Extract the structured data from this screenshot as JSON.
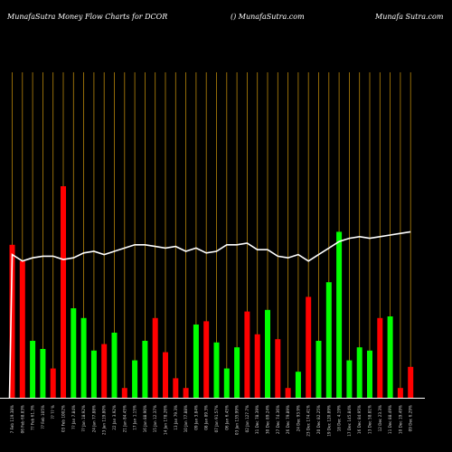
{
  "header": {
    "left": "MunafaSutra  Money Flow  Charts for DCOR",
    "middle": "() MunafaSutra.com",
    "right": "Munafa Sutra.com"
  },
  "chart_data": {
    "type": "bar",
    "title": "MunafaSutra  Money Flow  Charts for DCOR",
    "colors": {
      "up": "#00ff00",
      "down": "#ff0000",
      "grid": "#b8860b",
      "line": "#ffffff",
      "background": "#000000"
    },
    "categories": [
      "7 Feb 119.38%",
      "06 Feb 68.83%",
      "?? Feb 61.3%",
      "?? Feb 105%",
      "?? ?? %",
      "03 Feb 1002%",
      "?? Jan 7.84%",
      "?? Jan 18.92%",
      "24 Jan 77.88%",
      "23 Jan 119.80%",
      "22 Jan 3.92%",
      "21 Jan 84.45%",
      "17 Jan 1.15%",
      "16 Jan 88.90%",
      "15 Jan 12.37%",
      "14 Jan 178.26%",
      "13 Jan 79.3%",
      "10 Jan 77.88%",
      "09 Jan 3.84%",
      "08 Jan 89.3%",
      "07 Jan 91.57%",
      "06 Jan 6.45%",
      "03 Jan 135.99%",
      "02 Jan 127.7%",
      "31 Dec 78.39%",
      "30 Dec 89.24%",
      "27 Dec 74.36%",
      "26 Dec 79.89%",
      "24 Dec 93.9%",
      "23 Dec 174.41%",
      "20 Dec 82.25%",
      "19 Dec 120.89%",
      "18 Dec 4.19%",
      "17 Dec 145.84%",
      "16 Dec 84.95%",
      "13 Dec 58.81%",
      "12 Dec 23.3%",
      "11 Dec 88.49%",
      "10 Dec 19.49%",
      "09 Dec 6.29%"
    ],
    "series": [
      {
        "values": [
          94,
          84,
          35,
          30,
          18,
          130,
          55,
          49,
          29,
          33,
          40,
          6,
          23,
          35,
          49,
          28,
          12,
          6,
          45,
          47,
          34,
          18,
          31,
          53,
          39,
          54,
          36,
          6,
          16,
          62,
          35,
          71,
          102,
          23,
          31,
          29,
          49,
          50,
          6,
          19
        ]
      },
      {
        "values": [
          88,
          84,
          86,
          87,
          87,
          85,
          86,
          89,
          90,
          88,
          90,
          92,
          94,
          94,
          93,
          92,
          93,
          90,
          92,
          89,
          90,
          94,
          94,
          95,
          91,
          91,
          87,
          86,
          88,
          84,
          88,
          92,
          96,
          98,
          99,
          98,
          99,
          100,
          101,
          102
        ]
      }
    ],
    "up": [
      false,
      false,
      true,
      true,
      false,
      false,
      true,
      true,
      true,
      false,
      true,
      false,
      true,
      true,
      false,
      false,
      false,
      false,
      true,
      false,
      true,
      true,
      true,
      false,
      false,
      true,
      false,
      false,
      true,
      false,
      true,
      true,
      true,
      true,
      true,
      true,
      false,
      true,
      false,
      false
    ],
    "ylim": [
      0,
      200
    ]
  }
}
